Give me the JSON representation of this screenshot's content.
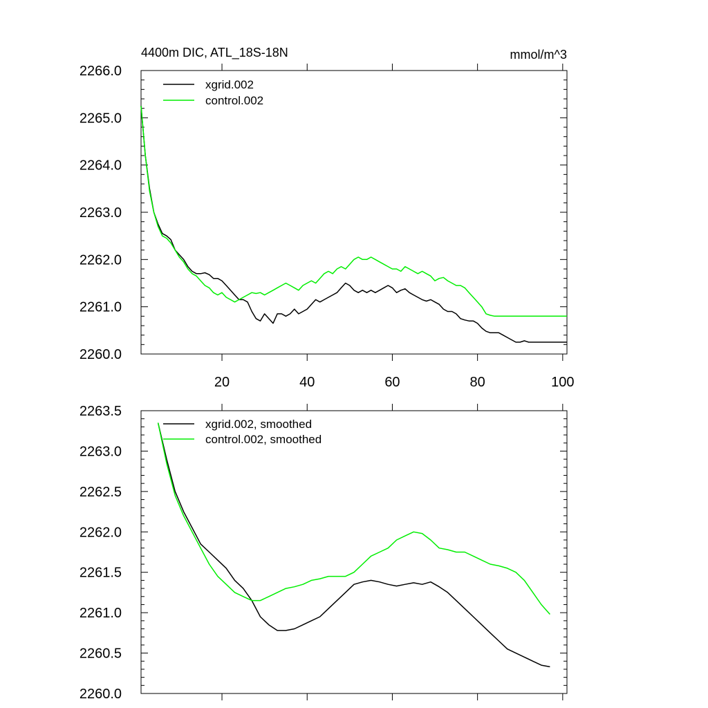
{
  "chart_data": [
    {
      "type": "line",
      "title": "4400m DIC, ATL_18S-18N",
      "units": "mmol/m^3",
      "xlim": [
        1,
        101
      ],
      "ylim": [
        2260.0,
        2266.0
      ],
      "x_ticks": [
        20,
        40,
        60,
        80,
        100
      ],
      "x_tick_labels": [
        "20",
        "40",
        "60",
        "80",
        "100"
      ],
      "y_ticks": [
        2260.0,
        2261.0,
        2262.0,
        2263.0,
        2264.0,
        2265.0,
        2266.0
      ],
      "y_tick_labels": [
        "2260.0",
        "2261.0",
        "2262.0",
        "2263.0",
        "2264.0",
        "2265.0",
        "2266.0"
      ],
      "series": [
        {
          "name": "xgrid.002",
          "color": "#000000",
          "x": [
            1,
            2,
            3,
            4,
            5,
            6,
            7,
            8,
            9,
            10,
            11,
            12,
            13,
            14,
            15,
            16,
            17,
            18,
            19,
            20,
            21,
            22,
            23,
            24,
            25,
            26,
            27,
            28,
            29,
            30,
            31,
            32,
            33,
            34,
            35,
            36,
            37,
            38,
            39,
            40,
            41,
            42,
            43,
            44,
            45,
            46,
            47,
            48,
            49,
            50,
            51,
            52,
            53,
            54,
            55,
            56,
            57,
            58,
            59,
            60,
            61,
            62,
            63,
            64,
            65,
            66,
            67,
            68,
            69,
            70,
            71,
            72,
            73,
            74,
            75,
            76,
            77,
            78,
            79,
            80,
            81,
            82,
            83,
            84,
            85,
            86,
            87,
            88,
            89,
            90,
            91,
            92,
            93,
            94,
            95,
            96,
            97,
            98,
            99,
            100,
            101
          ],
          "y": [
            2265.25,
            2264.2,
            2263.5,
            2263.0,
            2262.75,
            2262.55,
            2262.5,
            2262.42,
            2262.2,
            2262.1,
            2262.0,
            2261.85,
            2261.75,
            2261.7,
            2261.7,
            2261.72,
            2261.68,
            2261.6,
            2261.6,
            2261.55,
            2261.45,
            2261.35,
            2261.25,
            2261.15,
            2261.15,
            2261.1,
            2260.9,
            2260.75,
            2260.7,
            2260.85,
            2260.75,
            2260.65,
            2260.85,
            2260.85,
            2260.8,
            2260.85,
            2260.95,
            2260.85,
            2260.9,
            2260.95,
            2261.05,
            2261.15,
            2261.1,
            2261.15,
            2261.2,
            2261.25,
            2261.3,
            2261.4,
            2261.5,
            2261.45,
            2261.35,
            2261.3,
            2261.35,
            2261.3,
            2261.35,
            2261.3,
            2261.35,
            2261.4,
            2261.45,
            2261.4,
            2261.3,
            2261.35,
            2261.38,
            2261.3,
            2261.25,
            2261.2,
            2261.15,
            2261.12,
            2261.15,
            2261.1,
            2261.05,
            2260.95,
            2260.9,
            2260.9,
            2260.85,
            2260.75,
            2260.72,
            2260.7,
            2260.7,
            2260.65,
            2260.55,
            2260.48,
            2260.45,
            2260.45,
            2260.45,
            2260.4,
            2260.35,
            2260.3,
            2260.25,
            2260.25,
            2260.28,
            2260.25,
            2260.25,
            2260.25,
            2260.25,
            2260.25,
            2260.25,
            2260.25,
            2260.25,
            2260.25,
            2260.25
          ]
        },
        {
          "name": "control.002",
          "color": "#00ee00",
          "x": [
            1,
            2,
            3,
            4,
            5,
            6,
            7,
            8,
            9,
            10,
            11,
            12,
            13,
            14,
            15,
            16,
            17,
            18,
            19,
            20,
            21,
            22,
            23,
            24,
            25,
            26,
            27,
            28,
            29,
            30,
            31,
            32,
            33,
            34,
            35,
            36,
            37,
            38,
            39,
            40,
            41,
            42,
            43,
            44,
            45,
            46,
            47,
            48,
            49,
            50,
            51,
            52,
            53,
            54,
            55,
            56,
            57,
            58,
            59,
            60,
            61,
            62,
            63,
            64,
            65,
            66,
            67,
            68,
            69,
            70,
            71,
            72,
            73,
            74,
            75,
            76,
            77,
            78,
            79,
            80,
            81,
            82,
            83,
            84,
            85,
            86,
            87,
            88,
            89,
            90,
            91,
            92,
            93,
            94,
            95,
            96,
            97,
            98,
            99,
            100,
            101
          ],
          "y": [
            2265.25,
            2264.2,
            2263.45,
            2263.0,
            2262.7,
            2262.5,
            2262.45,
            2262.35,
            2262.2,
            2262.05,
            2261.95,
            2261.8,
            2261.7,
            2261.65,
            2261.55,
            2261.45,
            2261.4,
            2261.3,
            2261.25,
            2261.3,
            2261.2,
            2261.15,
            2261.1,
            2261.15,
            2261.2,
            2261.25,
            2261.3,
            2261.28,
            2261.3,
            2261.25,
            2261.3,
            2261.35,
            2261.4,
            2261.45,
            2261.5,
            2261.45,
            2261.4,
            2261.35,
            2261.45,
            2261.5,
            2261.55,
            2261.5,
            2261.6,
            2261.7,
            2261.75,
            2261.7,
            2261.8,
            2261.85,
            2261.8,
            2261.9,
            2262.0,
            2262.05,
            2262.0,
            2262.0,
            2262.05,
            2262.0,
            2261.95,
            2261.9,
            2261.85,
            2261.8,
            2261.8,
            2261.75,
            2261.85,
            2261.8,
            2261.75,
            2261.7,
            2261.75,
            2261.7,
            2261.65,
            2261.55,
            2261.6,
            2261.62,
            2261.55,
            2261.5,
            2261.45,
            2261.45,
            2261.4,
            2261.3,
            2261.2,
            2261.1,
            2261.0,
            2260.85,
            2260.82,
            2260.8,
            2260.8,
            2260.8,
            2260.8,
            2260.8,
            2260.8,
            2260.8,
            2260.8,
            2260.8,
            2260.8,
            2260.8,
            2260.8,
            2260.8,
            2260.8,
            2260.8,
            2260.8,
            2260.8,
            2260.8
          ]
        }
      ]
    },
    {
      "type": "line",
      "title": "",
      "xlim": [
        1,
        101
      ],
      "ylim": [
        2260.0,
        2263.5
      ],
      "x_ticks": [
        20,
        40,
        60,
        80,
        100
      ],
      "x_tick_labels": [],
      "y_ticks": [
        2260.0,
        2260.5,
        2261.0,
        2261.5,
        2262.0,
        2262.5,
        2263.0,
        2263.5
      ],
      "y_tick_labels": [
        "2260.0",
        "2260.5",
        "2261.0",
        "2261.5",
        "2262.0",
        "2262.5",
        "2263.0",
        "2263.5"
      ],
      "series": [
        {
          "name": "xgrid.002, smoothed",
          "color": "#000000",
          "x": [
            5,
            7,
            9,
            11,
            13,
            15,
            17,
            19,
            21,
            23,
            25,
            27,
            29,
            31,
            33,
            35,
            37,
            39,
            41,
            43,
            45,
            47,
            49,
            51,
            53,
            55,
            57,
            59,
            61,
            63,
            65,
            67,
            69,
            71,
            73,
            75,
            77,
            79,
            81,
            83,
            85,
            87,
            89,
            91,
            93,
            95,
            97
          ],
          "y": [
            2263.35,
            2262.9,
            2262.5,
            2262.25,
            2262.05,
            2261.85,
            2261.75,
            2261.65,
            2261.55,
            2261.4,
            2261.3,
            2261.15,
            2260.95,
            2260.85,
            2260.78,
            2260.78,
            2260.8,
            2260.85,
            2260.9,
            2260.95,
            2261.05,
            2261.15,
            2261.25,
            2261.35,
            2261.38,
            2261.4,
            2261.38,
            2261.35,
            2261.33,
            2261.35,
            2261.37,
            2261.35,
            2261.38,
            2261.32,
            2261.25,
            2261.15,
            2261.05,
            2260.95,
            2260.85,
            2260.75,
            2260.65,
            2260.55,
            2260.5,
            2260.45,
            2260.4,
            2260.35,
            2260.33
          ]
        },
        {
          "name": "control.002, smoothed",
          "color": "#00ee00",
          "x": [
            5,
            7,
            9,
            11,
            13,
            15,
            17,
            19,
            21,
            23,
            25,
            27,
            29,
            31,
            33,
            35,
            37,
            39,
            41,
            43,
            45,
            47,
            49,
            51,
            53,
            55,
            57,
            59,
            61,
            63,
            65,
            67,
            69,
            71,
            73,
            75,
            77,
            79,
            81,
            83,
            85,
            87,
            89,
            91,
            93,
            95,
            97
          ],
          "y": [
            2263.35,
            2262.85,
            2262.45,
            2262.2,
            2262.0,
            2261.8,
            2261.6,
            2261.45,
            2261.35,
            2261.25,
            2261.2,
            2261.15,
            2261.15,
            2261.2,
            2261.25,
            2261.3,
            2261.32,
            2261.35,
            2261.4,
            2261.42,
            2261.45,
            2261.45,
            2261.45,
            2261.5,
            2261.6,
            2261.7,
            2261.75,
            2261.8,
            2261.9,
            2261.95,
            2262.0,
            2261.98,
            2261.9,
            2261.8,
            2261.78,
            2261.75,
            2261.75,
            2261.7,
            2261.65,
            2261.6,
            2261.58,
            2261.55,
            2261.5,
            2261.4,
            2261.25,
            2261.1,
            2260.98
          ]
        }
      ]
    }
  ]
}
